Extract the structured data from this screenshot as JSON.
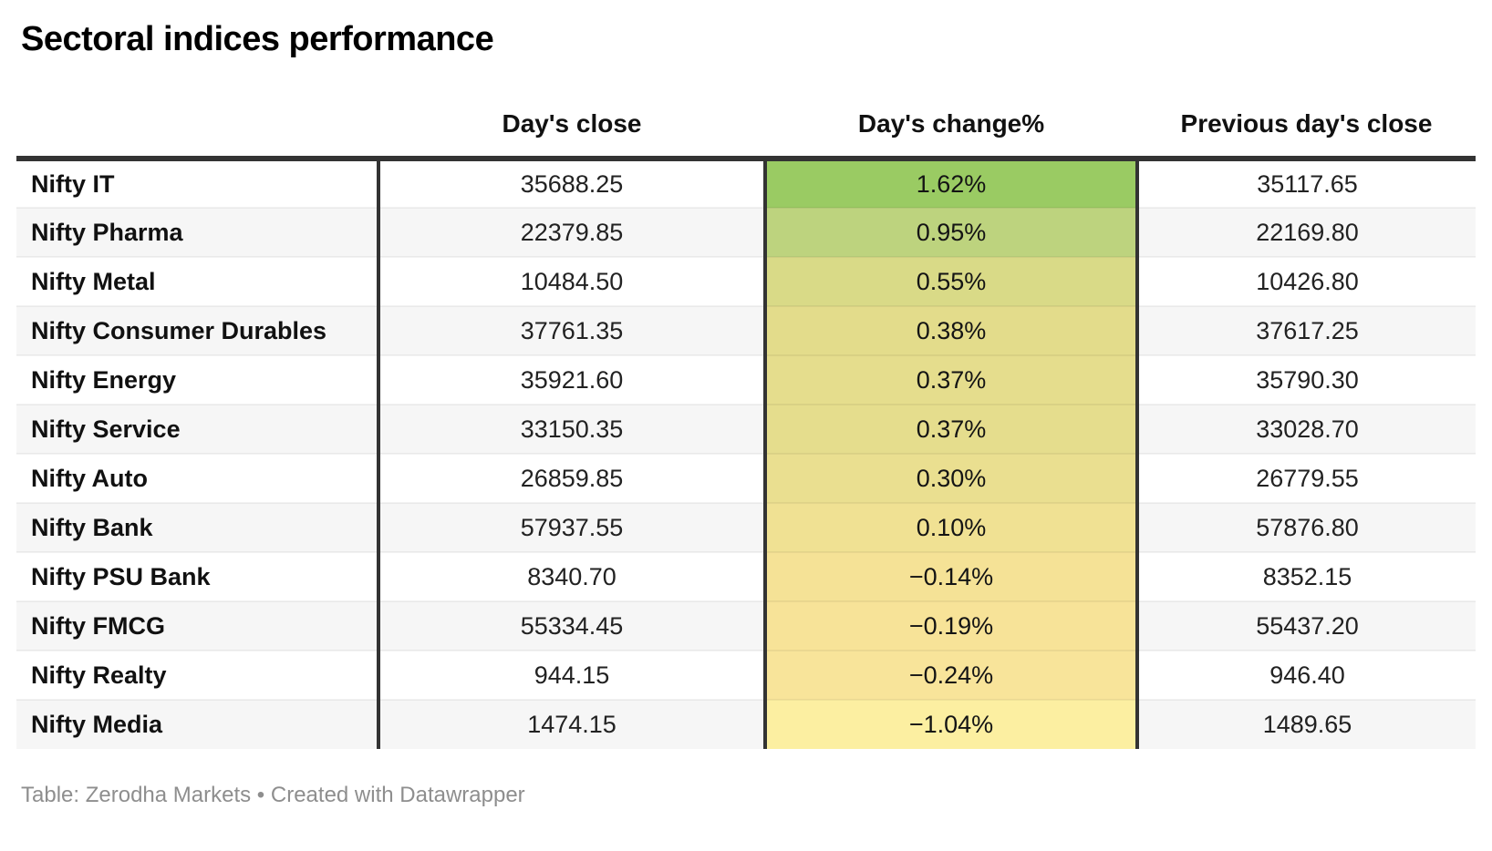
{
  "title": "Sectoral indices performance",
  "table": {
    "columns": [
      "",
      "Day's close",
      "Day's change%",
      "Previous day's close"
    ],
    "rows": [
      {
        "name": "Nifty IT",
        "close": "35688.25",
        "change": "1.62%",
        "change_color": "#9acb63",
        "prev": "35117.65"
      },
      {
        "name": "Nifty Pharma",
        "close": "22379.85",
        "change": "0.95%",
        "change_color": "#bdd37e",
        "prev": "22169.80"
      },
      {
        "name": "Nifty Metal",
        "close": "10484.50",
        "change": "0.55%",
        "change_color": "#d9da87",
        "prev": "10426.80"
      },
      {
        "name": "Nifty Consumer Durables",
        "close": "37761.35",
        "change": "0.38%",
        "change_color": "#e3dc8b",
        "prev": "37617.25"
      },
      {
        "name": "Nifty Energy",
        "close": "35921.60",
        "change": "0.37%",
        "change_color": "#e5dd8d",
        "prev": "35790.30"
      },
      {
        "name": "Nifty Service",
        "close": "33150.35",
        "change": "0.37%",
        "change_color": "#e5dd8d",
        "prev": "33028.70"
      },
      {
        "name": "Nifty Auto",
        "close": "26859.85",
        "change": "0.30%",
        "change_color": "#eadf90",
        "prev": "26779.55"
      },
      {
        "name": "Nifty Bank",
        "close": "57937.55",
        "change": "0.10%",
        "change_color": "#f0e193",
        "prev": "57876.80"
      },
      {
        "name": "Nifty PSU Bank",
        "close": "8340.70",
        "change": "−0.14%",
        "change_color": "#f5e296",
        "prev": "8352.15"
      },
      {
        "name": "Nifty FMCG",
        "close": "55334.45",
        "change": "−0.19%",
        "change_color": "#f7e398",
        "prev": "55437.20"
      },
      {
        "name": "Nifty Realty",
        "close": "944.15",
        "change": "−0.24%",
        "change_color": "#f8e49a",
        "prev": "946.40"
      },
      {
        "name": "Nifty Media",
        "close": "1474.15",
        "change": "−1.04%",
        "change_color": "#fcefa1",
        "prev": "1489.65"
      }
    ]
  },
  "footer": {
    "prefix": "Table:",
    "source": "Zerodha Markets",
    "separator": "•",
    "credit": "Created with Datawrapper"
  },
  "colors": {
    "top_border": "#333333",
    "stripe": "#f6f6f6",
    "heat_max_green": "#9acb63",
    "heat_min_yellow": "#fcefa1",
    "footer_text": "#8e8e8e"
  },
  "chart_data": {
    "type": "table",
    "title": "Sectoral indices performance",
    "categories": [
      "Nifty IT",
      "Nifty Pharma",
      "Nifty Metal",
      "Nifty Consumer Durables",
      "Nifty Energy",
      "Nifty Service",
      "Nifty Auto",
      "Nifty Bank",
      "Nifty PSU Bank",
      "Nifty FMCG",
      "Nifty Realty",
      "Nifty Media"
    ],
    "series": [
      {
        "name": "Day's close",
        "values": [
          35688.25,
          22379.85,
          10484.5,
          37761.35,
          35921.6,
          33150.35,
          26859.85,
          57937.55,
          8340.7,
          55334.45,
          944.15,
          1474.15
        ]
      },
      {
        "name": "Day's change%",
        "values": [
          1.62,
          0.95,
          0.55,
          0.38,
          0.37,
          0.37,
          0.3,
          0.1,
          -0.14,
          -0.19,
          -0.24,
          -1.04
        ]
      },
      {
        "name": "Previous day's close",
        "values": [
          35117.65,
          22169.8,
          10426.8,
          37617.25,
          35790.3,
          33028.7,
          26779.55,
          57876.8,
          8352.15,
          55437.2,
          946.4,
          1489.65
        ]
      }
    ],
    "layout_hints": "Day's change% column heat-colored from green (highest, 1.62%) to pale yellow (lowest, -1.04%); rows sorted descending by change; zebra striping on alternate rows"
  }
}
